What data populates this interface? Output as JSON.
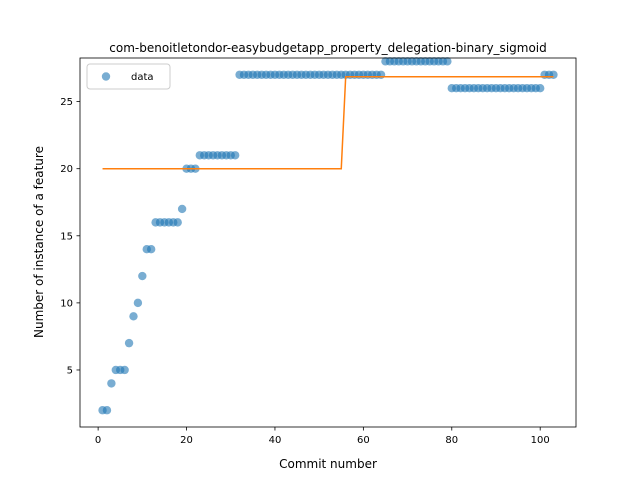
{
  "chart_data": {
    "type": "scatter",
    "title": "com-benoitletondor-easybudgetapp_property_delegation-binary_sigmoid",
    "xlabel": "Commit number",
    "ylabel": "Number of instance of a feature",
    "xlim": [
      -4.1,
      108.1
    ],
    "ylim": [
      0.75,
      28.25
    ],
    "xticks": [
      0,
      20,
      40,
      60,
      80,
      100
    ],
    "yticks": [
      5,
      10,
      15,
      20,
      25
    ],
    "legend": {
      "position": "top-left",
      "entries": [
        "data"
      ]
    },
    "series": [
      {
        "name": "data",
        "kind": "scatter",
        "color": "#1f77b4",
        "x": [
          1,
          2,
          3,
          4,
          5,
          6,
          7,
          8,
          9,
          10,
          11,
          12,
          13,
          14,
          15,
          16,
          17,
          18,
          19,
          20,
          21,
          22,
          23,
          24,
          25,
          26,
          27,
          28,
          29,
          30,
          31,
          32,
          33,
          34,
          35,
          36,
          37,
          38,
          39,
          40,
          41,
          42,
          43,
          44,
          45,
          46,
          47,
          48,
          49,
          50,
          51,
          52,
          53,
          54,
          55,
          56,
          57,
          58,
          59,
          60,
          61,
          62,
          63,
          64,
          65,
          66,
          67,
          68,
          69,
          70,
          71,
          72,
          73,
          74,
          75,
          76,
          77,
          78,
          79,
          80,
          81,
          82,
          83,
          84,
          85,
          86,
          87,
          88,
          89,
          90,
          91,
          92,
          93,
          94,
          95,
          96,
          97,
          98,
          99,
          100,
          101,
          102,
          103
        ],
        "y": [
          2,
          2,
          4,
          5,
          5,
          5,
          7,
          9,
          10,
          12,
          14,
          14,
          16,
          16,
          16,
          16,
          16,
          16,
          17,
          20,
          20,
          20,
          21,
          21,
          21,
          21,
          21,
          21,
          21,
          21,
          21,
          27,
          27,
          27,
          27,
          27,
          27,
          27,
          27,
          27,
          27,
          27,
          27,
          27,
          27,
          27,
          27,
          27,
          27,
          27,
          27,
          27,
          27,
          27,
          27,
          27,
          27,
          27,
          27,
          27,
          27,
          27,
          27,
          27,
          28,
          28,
          28,
          28,
          28,
          28,
          28,
          28,
          28,
          28,
          28,
          28,
          28,
          28,
          28,
          26,
          26,
          26,
          26,
          26,
          26,
          26,
          26,
          26,
          26,
          26,
          26,
          26,
          26,
          26,
          26,
          26,
          26,
          26,
          26,
          26,
          27,
          27,
          27
        ]
      },
      {
        "kind": "line",
        "color": "#ff7f0e",
        "x": [
          1,
          55,
          56,
          103
        ],
        "y": [
          20,
          20,
          26.85,
          26.85
        ]
      }
    ]
  }
}
